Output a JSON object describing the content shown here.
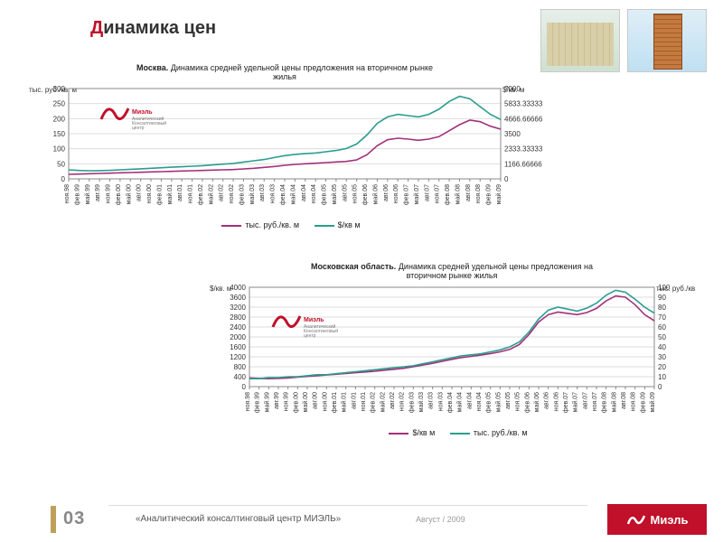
{
  "title": {
    "accent": "Д",
    "rest": "инамика цен"
  },
  "footer": {
    "page": "03",
    "centre": "«Аналитический консалтинговый центр МИЭЛЬ»",
    "date": "Август / 2009",
    "brand": "Миэль"
  },
  "colors": {
    "rub": "#a3307a",
    "usd": "#2a9d8f",
    "grid": "#dddddd",
    "axis": "#888888",
    "accent": "#c0102a",
    "bg": "#ffffff"
  },
  "xlabels": [
    "ноя.98",
    "фев.99",
    "май.99",
    "авг.99",
    "ноя.99",
    "фев.00",
    "май.00",
    "авг.00",
    "ноя.00",
    "фев.01",
    "май.01",
    "авг.01",
    "ноя.01",
    "фев.02",
    "май.02",
    "авг.02",
    "ноя.02",
    "фев.03",
    "май.03",
    "авг.03",
    "ноя.03",
    "фев.04",
    "май.04",
    "авг.04",
    "ноя.04",
    "фев.05",
    "май.05",
    "авг.05",
    "ноя.05",
    "фев.06",
    "май.06",
    "авг.06",
    "ноя.06",
    "фев.07",
    "май.07",
    "авг.07",
    "ноя.07",
    "фев.08",
    "май.08",
    "авг.08",
    "ноя.08",
    "фев.09",
    "май.09"
  ],
  "chart1": {
    "type": "line",
    "title_bold": "Москва.",
    "title_rest": "Динамика средней удельной цены предложения на вторичном рынке",
    "title_line2": "жилья",
    "left_axis_label": "тыс. руб./кв. м",
    "right_axis_label": "$/кв. м",
    "y_left": {
      "min": 0,
      "max": 300,
      "step": 50
    },
    "y_right": {
      "min": 0,
      "max": 7000,
      "step": 1000
    },
    "legend": [
      "тыс. руб./кв. м",
      "$/кв м"
    ],
    "series_rub": [
      15,
      16,
      17,
      18,
      19,
      20,
      21,
      22,
      23,
      24,
      25,
      26,
      27,
      28,
      29,
      30,
      31,
      33,
      35,
      38,
      41,
      45,
      48,
      50,
      52,
      54,
      56,
      58,
      63,
      80,
      110,
      130,
      135,
      132,
      128,
      132,
      140,
      160,
      180,
      195,
      190,
      175,
      165
    ],
    "series_usd": [
      700,
      650,
      630,
      640,
      660,
      700,
      740,
      780,
      820,
      860,
      900,
      940,
      980,
      1020,
      1080,
      1140,
      1200,
      1300,
      1400,
      1500,
      1650,
      1800,
      1900,
      1950,
      2000,
      2100,
      2200,
      2350,
      2700,
      3400,
      4300,
      4800,
      5000,
      4900,
      4800,
      5000,
      5400,
      6000,
      6400,
      6200,
      5600,
      5000,
      4600
    ],
    "line_width": 1.6,
    "label_fontsize": 8,
    "tick_fontsize": 7
  },
  "chart2": {
    "type": "line",
    "title_bold": "Московская область.",
    "title_rest": "Динамика средней удельной цены предложения на",
    "title_line2": "вторичном рынке жилья",
    "left_axis_label": "$/кв. м",
    "right_axis_label": "тыс. руб./кв. м",
    "y_left": {
      "min": 0,
      "max": 4000,
      "step": 400
    },
    "y_right": {
      "min": 0,
      "max": 100,
      "step": 10
    },
    "legend": [
      "$/кв м",
      "тыс. руб./кв. м"
    ],
    "series_usd": [
      350,
      330,
      320,
      330,
      350,
      380,
      410,
      440,
      470,
      500,
      530,
      560,
      590,
      620,
      660,
      700,
      740,
      800,
      870,
      940,
      1020,
      1100,
      1170,
      1220,
      1270,
      1330,
      1400,
      1500,
      1700,
      2100,
      2600,
      2900,
      3000,
      2950,
      2900,
      2980,
      3150,
      3450,
      3650,
      3600,
      3300,
      2900,
      2650
    ],
    "series_rub": [
      8,
      8,
      9,
      9,
      10,
      10,
      11,
      12,
      12,
      13,
      14,
      15,
      16,
      17,
      18,
      19,
      20,
      21,
      23,
      25,
      27,
      29,
      31,
      32,
      33,
      35,
      37,
      40,
      45,
      55,
      68,
      77,
      80,
      78,
      76,
      79,
      84,
      92,
      97,
      95,
      88,
      80,
      74
    ],
    "line_width": 1.6,
    "label_fontsize": 8,
    "tick_fontsize": 7
  }
}
